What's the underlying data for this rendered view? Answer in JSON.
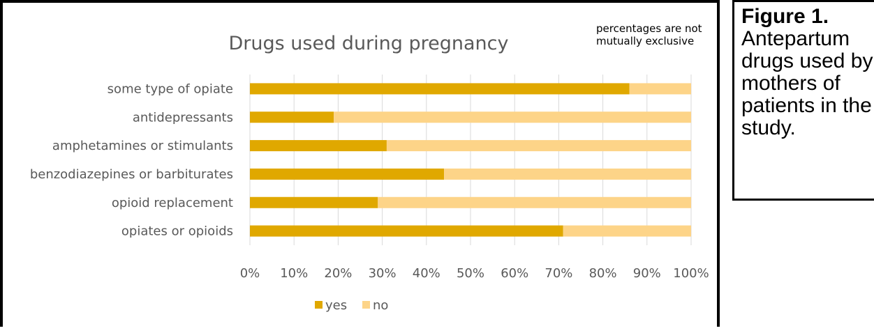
{
  "caption": {
    "label": "Figure 1.",
    "text": "Antepartum drugs used by mothers of patients in the study."
  },
  "colors": {
    "yes": "#e0a800",
    "no": "#fdd488",
    "grid": "#d9d9d9",
    "text": "#595959"
  },
  "chart_data": {
    "type": "bar",
    "orientation": "horizontal",
    "stacked": true,
    "title": "Drugs used during pregnancy",
    "annotation": "percentages are not mutually exclusive",
    "categories": [
      "some type of opiate",
      "antidepressants",
      "amphetamines or stimulants",
      "benzodiazepines or barbiturates",
      "opioid replacement",
      "opiates or opioids"
    ],
    "series": [
      {
        "name": "yes",
        "values": [
          86,
          19,
          31,
          44,
          29,
          71
        ]
      },
      {
        "name": "no",
        "values": [
          14,
          81,
          69,
          56,
          71,
          29
        ]
      }
    ],
    "xlim": [
      0,
      100
    ],
    "xticks": [
      "0%",
      "10%",
      "20%",
      "30%",
      "40%",
      "50%",
      "60%",
      "70%",
      "80%",
      "90%",
      "100%"
    ],
    "grid": true,
    "legend_position": "bottom"
  }
}
